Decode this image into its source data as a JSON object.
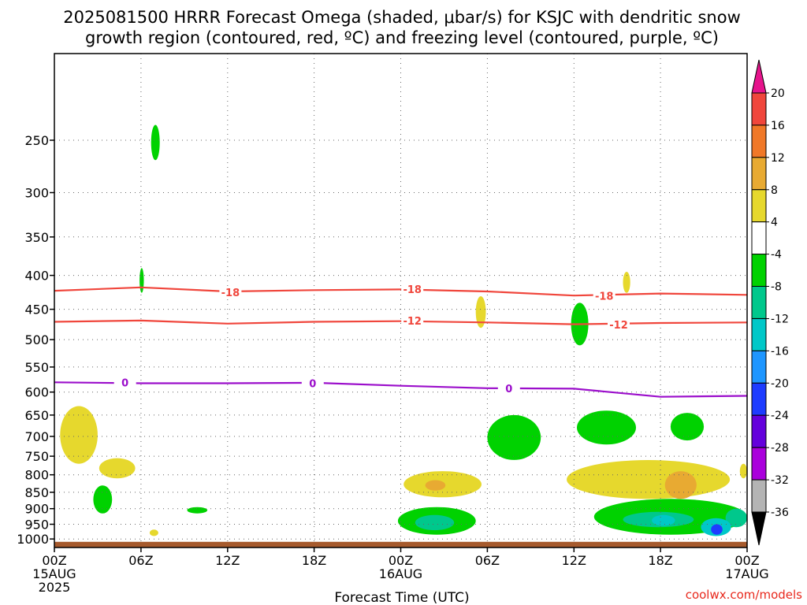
{
  "chart_data": {
    "type": "contour",
    "title_lines": [
      "2025081500 HRRR Forecast Omega (shaded, μbar/s) for KSJC with dendritic snow",
      "growth region (contoured, red, ºC) and freezing level (contoured, purple, ºC)"
    ],
    "xlabel": "Forecast Time (UTC)",
    "credit": "coolwx.com/models",
    "x_range_hours": [
      0,
      48
    ],
    "x_ticks": [
      {
        "hour": 0,
        "lines": [
          "00Z",
          "15AUG",
          "2025"
        ]
      },
      {
        "hour": 6,
        "lines": [
          "06Z"
        ]
      },
      {
        "hour": 12,
        "lines": [
          "12Z"
        ]
      },
      {
        "hour": 18,
        "lines": [
          "18Z"
        ]
      },
      {
        "hour": 24,
        "lines": [
          "00Z",
          "16AUG"
        ]
      },
      {
        "hour": 30,
        "lines": [
          "06Z"
        ]
      },
      {
        "hour": 36,
        "lines": [
          "12Z"
        ]
      },
      {
        "hour": 42,
        "lines": [
          "18Z"
        ]
      },
      {
        "hour": 48,
        "lines": [
          "00Z",
          "17AUG"
        ]
      }
    ],
    "y_scale": "log-pressure",
    "y_range_hpa": [
      1030,
      185
    ],
    "y_ticks": [
      250,
      300,
      350,
      400,
      450,
      500,
      550,
      600,
      650,
      700,
      750,
      800,
      850,
      900,
      950,
      1000
    ],
    "grid": "dotted",
    "ground_level_hpa": 1010,
    "contours": [
      {
        "name": "-18",
        "color": "#f0463c",
        "points": [
          [
            0,
            422
          ],
          [
            6,
            417
          ],
          [
            12,
            423
          ],
          [
            18,
            421
          ],
          [
            24,
            420
          ],
          [
            30,
            423
          ],
          [
            36,
            429
          ],
          [
            42,
            426
          ],
          [
            48,
            428
          ]
        ],
        "labels": [
          [
            12.2,
            425
          ],
          [
            24.8,
            420
          ],
          [
            38.1,
            430
          ]
        ]
      },
      {
        "name": "-12",
        "color": "#f0463c",
        "points": [
          [
            0,
            470
          ],
          [
            6,
            468
          ],
          [
            12,
            473
          ],
          [
            18,
            470
          ],
          [
            24,
            469
          ],
          [
            30,
            471
          ],
          [
            36,
            474
          ],
          [
            42,
            472
          ],
          [
            48,
            471
          ]
        ],
        "labels": [
          [
            24.8,
            469
          ],
          [
            39.1,
            475
          ]
        ]
      },
      {
        "name": "0",
        "color": "#9b0ecb",
        "points": [
          [
            0,
            580
          ],
          [
            6,
            582
          ],
          [
            12,
            582
          ],
          [
            18,
            581
          ],
          [
            24,
            587
          ],
          [
            30,
            592
          ],
          [
            36,
            593
          ],
          [
            42,
            610
          ],
          [
            48,
            608
          ]
        ],
        "labels": [
          [
            4.9,
            581
          ],
          [
            17.9,
            583
          ],
          [
            31.5,
            593
          ]
        ]
      }
    ],
    "omega_regions": [
      {
        "value": -6,
        "x": [
          6.7,
          7.3
        ],
        "hpa": [
          237,
          268
        ]
      },
      {
        "value": -6,
        "x": [
          5.9,
          6.2
        ],
        "hpa": [
          390,
          425
        ]
      },
      {
        "value": 6,
        "x": [
          0.4,
          3.0
        ],
        "hpa": [
          630,
          770
        ]
      },
      {
        "value": 6,
        "x": [
          3.1,
          5.6
        ],
        "hpa": [
          755,
          810
        ]
      },
      {
        "value": 6,
        "x": [
          6.6,
          7.2
        ],
        "hpa": [
          968,
          990
        ]
      },
      {
        "value": -6,
        "x": [
          2.7,
          4.0
        ],
        "hpa": [
          830,
          915
        ]
      },
      {
        "value": -6,
        "x": [
          9.2,
          10.6
        ],
        "hpa": [
          895,
          915
        ]
      },
      {
        "value": 6,
        "x": [
          29.2,
          29.9
        ],
        "hpa": [
          430,
          480
        ]
      },
      {
        "value": 6,
        "x": [
          39.4,
          39.9
        ],
        "hpa": [
          395,
          425
        ]
      },
      {
        "value": -6,
        "x": [
          35.8,
          37.0
        ],
        "hpa": [
          440,
          510
        ]
      },
      {
        "value": 6,
        "x": [
          24.2,
          29.6
        ],
        "hpa": [
          790,
          865
        ]
      },
      {
        "value": 10,
        "x": [
          25.7,
          27.1
        ],
        "hpa": [
          815,
          845
        ]
      },
      {
        "value": -6,
        "x": [
          30.0,
          33.7
        ],
        "hpa": [
          650,
          760
        ]
      },
      {
        "value": -6,
        "x": [
          36.2,
          40.3
        ],
        "hpa": [
          640,
          720
        ]
      },
      {
        "value": -6,
        "x": [
          42.7,
          45.0
        ],
        "hpa": [
          645,
          710
        ]
      },
      {
        "value": 6,
        "x": [
          35.5,
          46.8
        ],
        "hpa": [
          760,
          870
        ]
      },
      {
        "value": 10,
        "x": [
          42.3,
          44.5
        ],
        "hpa": [
          790,
          870
        ]
      },
      {
        "value": 6,
        "x": [
          47.5,
          48.0
        ],
        "hpa": [
          770,
          810
        ]
      },
      {
        "value": -6,
        "x": [
          23.8,
          29.2
        ],
        "hpa": [
          895,
          985
        ]
      },
      {
        "value": -10,
        "x": [
          25.0,
          27.7
        ],
        "hpa": [
          920,
          970
        ]
      },
      {
        "value": -6,
        "x": [
          37.4,
          48.0
        ],
        "hpa": [
          870,
          985
        ]
      },
      {
        "value": -10,
        "x": [
          39.4,
          44.3
        ],
        "hpa": [
          910,
          960
        ]
      },
      {
        "value": -10,
        "x": [
          46.5,
          48.0
        ],
        "hpa": [
          900,
          960
        ]
      },
      {
        "value": -14,
        "x": [
          41.4,
          43.0
        ],
        "hpa": [
          920,
          955
        ]
      },
      {
        "value": -14,
        "x": [
          44.8,
          46.9
        ],
        "hpa": [
          930,
          990
        ]
      },
      {
        "value": -22,
        "x": [
          45.5,
          46.3
        ],
        "hpa": [
          950,
          985
        ]
      }
    ],
    "colorbar": {
      "labels": [
        "20",
        "16",
        "12",
        "8",
        "4",
        "-4",
        "-8",
        "-12",
        "-16",
        "-20",
        "-24",
        "-28",
        "-32",
        "-36"
      ],
      "colors": [
        "#f0463c",
        "#f07828",
        "#e8aa32",
        "#e6d82d",
        "#ffffff",
        "#00d200",
        "#00c88c",
        "#00c8c8",
        "#1e96ff",
        "#1e3cff",
        "#6400dc",
        "#aa00dc",
        "#b4b4b4"
      ],
      "top_color": "#e6148c",
      "bottom_color": "#000000"
    },
    "omega_colors": {
      "6": "#e6d82d",
      "10": "#e8aa32",
      "-6": "#00d200",
      "-10": "#00c88c",
      "-14": "#00c8c8",
      "-22": "#1e3cff"
    },
    "ground_color": "#a65a2d"
  }
}
